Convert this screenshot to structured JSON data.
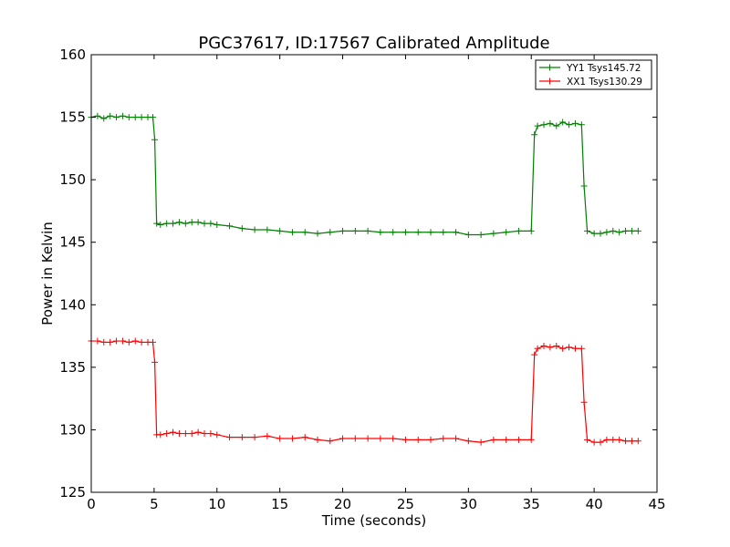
{
  "chart_data": {
    "type": "line",
    "title": "PGC37617, ID:17567 Calibrated Amplitude",
    "xlabel": "Time (seconds)",
    "ylabel": "Power in Kelvin",
    "xlim": [
      0,
      45
    ],
    "ylim": [
      125,
      160
    ],
    "xticks": [
      0,
      5,
      10,
      15,
      20,
      25,
      30,
      35,
      40,
      45
    ],
    "yticks": [
      125,
      130,
      135,
      140,
      145,
      150,
      155,
      160
    ],
    "grid": false,
    "legend_position": "top-right",
    "marker": "plus",
    "series": [
      {
        "name": "YY1 Tsys145.72",
        "color": "#008000",
        "x": [
          0,
          0.5,
          1,
          1.5,
          2,
          2.5,
          3,
          3.5,
          4,
          4.5,
          4.9,
          5.05,
          5.2,
          5.5,
          6,
          6.5,
          7,
          7.5,
          8,
          8.5,
          9,
          9.5,
          10,
          11,
          12,
          13,
          14,
          15,
          16,
          17,
          18,
          19,
          20,
          21,
          22,
          23,
          24,
          25,
          26,
          27,
          28,
          29,
          30,
          31,
          32,
          33,
          34,
          35,
          35.25,
          35.5,
          36,
          36.5,
          37,
          37.5,
          38,
          38.5,
          39,
          39.2,
          39.45,
          40,
          40.5,
          41,
          41.5,
          42,
          42.5,
          43,
          43.5
        ],
        "y": [
          155.0,
          155.1,
          154.9,
          155.1,
          155.0,
          155.1,
          155.0,
          155.0,
          155.0,
          155.0,
          155.0,
          153.2,
          146.5,
          146.4,
          146.5,
          146.5,
          146.6,
          146.5,
          146.6,
          146.6,
          146.5,
          146.5,
          146.4,
          146.3,
          146.1,
          146.0,
          146.0,
          145.9,
          145.8,
          145.8,
          145.7,
          145.8,
          145.9,
          145.9,
          145.9,
          145.8,
          145.8,
          145.8,
          145.8,
          145.8,
          145.8,
          145.8,
          145.6,
          145.6,
          145.7,
          145.8,
          145.9,
          145.9,
          153.6,
          154.3,
          154.4,
          154.5,
          154.3,
          154.6,
          154.4,
          154.5,
          154.4,
          149.5,
          145.9,
          145.7,
          145.7,
          145.8,
          145.9,
          145.8,
          145.9,
          145.9,
          145.9
        ]
      },
      {
        "name": "XX1 Tsys130.29",
        "color": "#ff0000",
        "x": [
          0,
          0.5,
          1,
          1.5,
          2,
          2.5,
          3,
          3.5,
          4,
          4.5,
          4.9,
          5.05,
          5.2,
          5.5,
          6,
          6.5,
          7,
          7.5,
          8,
          8.5,
          9,
          9.5,
          10,
          11,
          12,
          13,
          14,
          15,
          16,
          17,
          18,
          19,
          20,
          21,
          22,
          23,
          24,
          25,
          26,
          27,
          28,
          29,
          30,
          31,
          32,
          33,
          34,
          35,
          35.25,
          35.5,
          36,
          36.5,
          37,
          37.5,
          38,
          38.5,
          39,
          39.2,
          39.45,
          40,
          40.5,
          41,
          41.5,
          42,
          42.5,
          43,
          43.5
        ],
        "y": [
          137.1,
          137.1,
          137.0,
          137.0,
          137.1,
          137.1,
          137.0,
          137.1,
          137.0,
          137.0,
          137.0,
          135.4,
          129.6,
          129.6,
          129.7,
          129.8,
          129.7,
          129.7,
          129.7,
          129.8,
          129.7,
          129.7,
          129.6,
          129.4,
          129.4,
          129.4,
          129.5,
          129.3,
          129.3,
          129.4,
          129.2,
          129.1,
          129.3,
          129.3,
          129.3,
          129.3,
          129.3,
          129.2,
          129.2,
          129.2,
          129.3,
          129.3,
          129.1,
          129.0,
          129.2,
          129.2,
          129.2,
          129.2,
          136.0,
          136.5,
          136.7,
          136.6,
          136.7,
          136.5,
          136.6,
          136.5,
          136.5,
          132.2,
          129.2,
          129.0,
          129.0,
          129.2,
          129.2,
          129.2,
          129.1,
          129.1,
          129.1
        ]
      }
    ]
  }
}
